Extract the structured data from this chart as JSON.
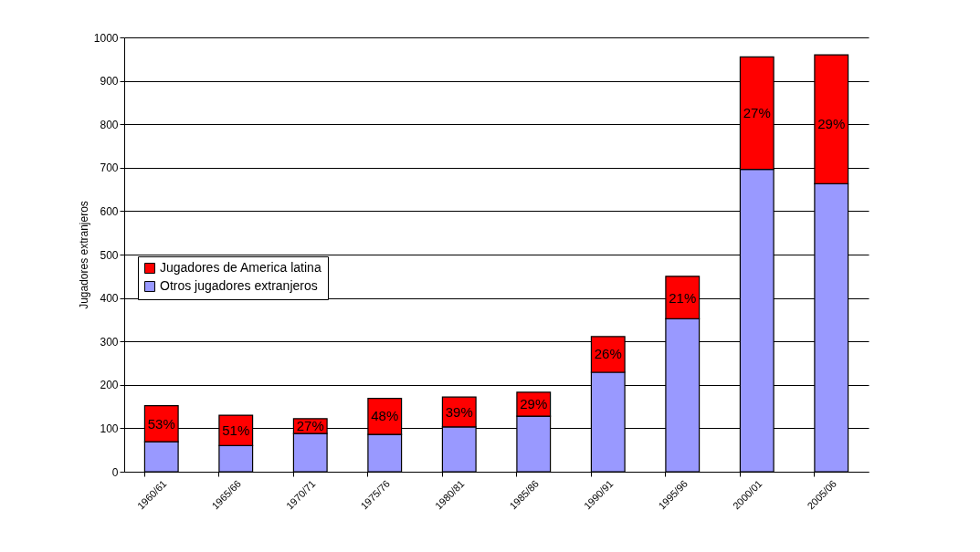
{
  "chart_data": {
    "type": "bar",
    "stacked": true,
    "ylabel": "Jugadores extranjeros",
    "categories": [
      "1960/61",
      "1965/66",
      "1970/71",
      "1975/76",
      "1980/81",
      "1985/86",
      "1990/91",
      "1995/96",
      "2000/01",
      "2005/06"
    ],
    "series": [
      {
        "name": "Otros jugadores extranjeros",
        "color": "#9999ff",
        "values": [
          69,
          60,
          88,
          86,
          103,
          128,
          229,
          352,
          696,
          663
        ]
      },
      {
        "name": "Jugadores de America latina",
        "color": "#ff0000",
        "values": [
          83,
          70,
          34,
          83,
          69,
          55,
          82,
          98,
          259,
          297
        ]
      }
    ],
    "annotations": [
      {
        "text": "53%",
        "x": "1960/61",
        "y": 110
      },
      {
        "text": "51%",
        "x": "1965/66",
        "y": 95
      },
      {
        "text": "27%",
        "x": "1970/71",
        "y": 105
      },
      {
        "text": "48%",
        "x": "1975/76",
        "y": 128
      },
      {
        "text": "39%",
        "x": "1980/81",
        "y": 137
      },
      {
        "text": "29%",
        "x": "1985/86",
        "y": 155
      },
      {
        "text": "26%",
        "x": "1990/91",
        "y": 270
      },
      {
        "text": "21%",
        "x": "1995/96",
        "y": 400
      },
      {
        "text": "27%",
        "x": "2000/01",
        "y": 825
      },
      {
        "text": "29%",
        "x": "2005/06",
        "y": 800
      }
    ],
    "ylim": [
      0,
      1000
    ],
    "yticks": [
      0,
      100,
      200,
      300,
      400,
      500,
      600,
      700,
      800,
      900,
      1000
    ],
    "grid": "y",
    "legend": "left"
  }
}
